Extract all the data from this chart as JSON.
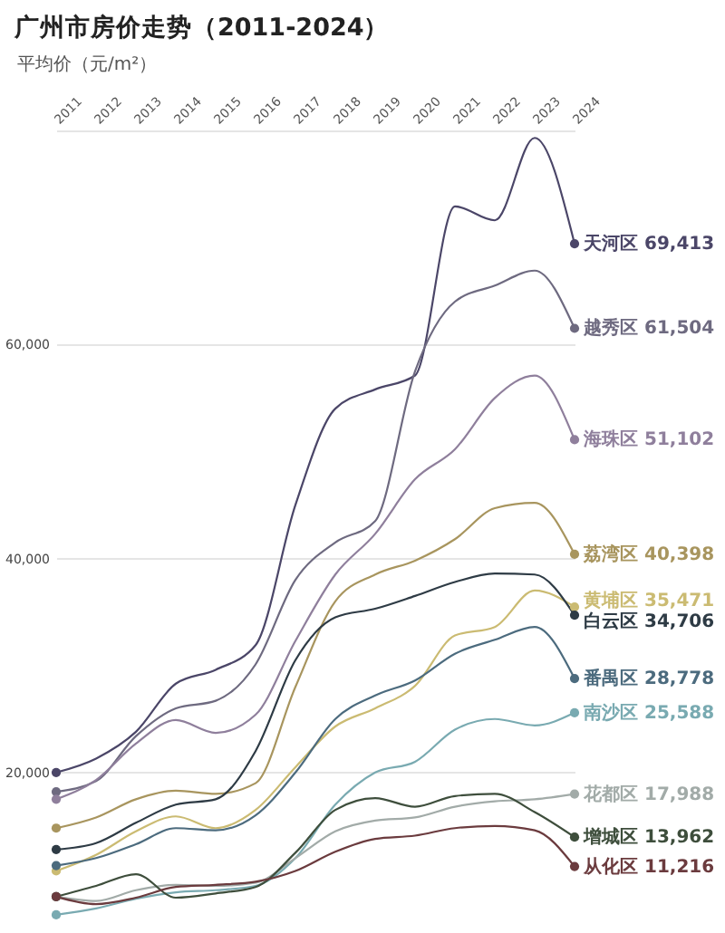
{
  "chart_data": {
    "type": "line",
    "title": "广州市房价走势（2011-2024）",
    "ylabel": "平均价（元/m²）",
    "categories": [
      "2011",
      "2012",
      "2013",
      "2014",
      "2015",
      "2016",
      "2017",
      "2018",
      "2019",
      "2020",
      "2021",
      "2022",
      "2023",
      "2024"
    ],
    "series": [
      {
        "name": "天河区",
        "color": "#4b4668",
        "values": [
          20000,
          21300,
          23800,
          28300,
          29600,
          31900,
          45000,
          54000,
          55800,
          57100,
          72900,
          71600,
          79300,
          69413
        ],
        "value_labels": [
          null,
          null,
          null,
          null,
          null,
          null,
          null,
          null,
          null,
          null,
          null,
          null,
          null,
          "69,413"
        ]
      },
      {
        "name": "越秀区",
        "color": "#6e6a80",
        "values": [
          18200,
          19200,
          23400,
          26000,
          26700,
          30100,
          38000,
          41500,
          43500,
          57500,
          64000,
          65500,
          66900,
          61504
        ],
        "value_labels": [
          null,
          null,
          null,
          null,
          null,
          null,
          null,
          null,
          null,
          null,
          null,
          null,
          null,
          "61,504"
        ]
      },
      {
        "name": "海珠区",
        "color": "#8f7f9c",
        "values": [
          17500,
          19300,
          22700,
          24900,
          23700,
          25400,
          32300,
          38500,
          42300,
          47400,
          50200,
          55000,
          57100,
          51102
        ],
        "value_labels": [
          null,
          null,
          null,
          null,
          null,
          null,
          null,
          null,
          null,
          null,
          null,
          null,
          null,
          "51,102"
        ]
      },
      {
        "name": "荔湾区",
        "color": "#a8955e",
        "values": [
          14800,
          15800,
          17500,
          18300,
          18000,
          19000,
          28000,
          36000,
          38500,
          39800,
          41800,
          44700,
          45200,
          40398
        ],
        "value_labels": [
          null,
          null,
          null,
          null,
          null,
          null,
          null,
          null,
          null,
          null,
          null,
          null,
          null,
          "40,398"
        ]
      },
      {
        "name": "黄埔区",
        "color": "#cbbb72",
        "values": [
          10800,
          12300,
          14500,
          15900,
          14800,
          16500,
          20500,
          24300,
          26000,
          28100,
          32800,
          33600,
          37000,
          35471
        ],
        "value_labels": [
          null,
          null,
          null,
          null,
          null,
          null,
          null,
          null,
          null,
          null,
          null,
          null,
          null,
          "35,471"
        ]
      },
      {
        "name": "白云区",
        "color": "#2e3b45",
        "values": [
          12800,
          13400,
          15300,
          17000,
          17500,
          22000,
          30500,
          34500,
          35300,
          36500,
          37800,
          38600,
          38500,
          34706
        ],
        "value_labels": [
          null,
          null,
          null,
          null,
          null,
          null,
          null,
          null,
          null,
          null,
          null,
          null,
          null,
          "34,706"
        ]
      },
      {
        "name": "番禺区",
        "color": "#4c6b7e",
        "values": [
          11300,
          12000,
          13300,
          14800,
          14600,
          16000,
          20000,
          25000,
          27200,
          28600,
          31100,
          32400,
          33600,
          28778
        ],
        "value_labels": [
          null,
          null,
          null,
          null,
          null,
          null,
          null,
          null,
          null,
          null,
          null,
          null,
          null,
          "28,778"
        ]
      },
      {
        "name": "南沙区",
        "color": "#79aab1",
        "values": [
          6700,
          7300,
          8200,
          8800,
          9000,
          9400,
          12000,
          17000,
          20000,
          21000,
          24000,
          25000,
          24400,
          25588
        ],
        "value_labels": [
          null,
          null,
          null,
          null,
          null,
          null,
          null,
          null,
          null,
          null,
          null,
          null,
          null,
          "25,588"
        ]
      },
      {
        "name": "花都区",
        "color": "#a2aba8",
        "values": [
          8400,
          8000,
          9000,
          9500,
          9400,
          9700,
          12000,
          14500,
          15500,
          15800,
          16800,
          17300,
          17500,
          17988
        ],
        "value_labels": [
          null,
          null,
          null,
          null,
          null,
          null,
          null,
          null,
          null,
          null,
          null,
          null,
          null,
          "17,988"
        ]
      },
      {
        "name": "增城区",
        "color": "#3e4e3c",
        "values": [
          8400,
          9400,
          10500,
          8300,
          8700,
          9300,
          12500,
          16500,
          17600,
          16800,
          17800,
          18000,
          16300,
          13962
        ],
        "value_labels": [
          null,
          null,
          null,
          null,
          null,
          null,
          null,
          null,
          null,
          null,
          null,
          null,
          null,
          "13,962"
        ]
      },
      {
        "name": "从化区",
        "color": "#6b3b3e",
        "values": [
          8400,
          7700,
          8300,
          9300,
          9500,
          9800,
          10800,
          12600,
          13800,
          14100,
          14800,
          15000,
          14600,
          11216
        ],
        "value_labels": [
          null,
          null,
          null,
          null,
          null,
          null,
          null,
          null,
          null,
          null,
          null,
          null,
          null,
          "11,216"
        ]
      }
    ],
    "ylim": [
      5000,
      80000
    ],
    "yticks": [
      {
        "value": 20000,
        "label": "20,000"
      },
      {
        "value": 40000,
        "label": "40,000"
      },
      {
        "value": 60000,
        "label": "60,000"
      },
      {
        "value": 80000,
        "label": null
      }
    ],
    "grid": "y"
  }
}
